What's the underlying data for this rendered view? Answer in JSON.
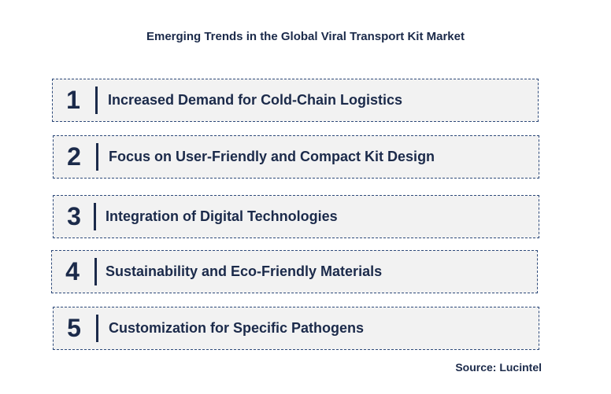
{
  "title": "Emerging Trends in the Global Viral Transport Kit Market",
  "trends": [
    {
      "number": "1",
      "label": "Increased Demand for Cold-Chain Logistics"
    },
    {
      "number": "2",
      "label": "Focus on User-Friendly and Compact Kit Design"
    },
    {
      "number": "3",
      "label": "Integration of Digital Technologies"
    },
    {
      "number": "4",
      "label": "Sustainability and Eco-Friendly Materials"
    },
    {
      "number": "5",
      "label": "Customization for Specific Pathogens"
    }
  ],
  "source": "Source: Lucintel",
  "colors": {
    "text": "#1b2a4a",
    "box_fill": "#f2f2f2",
    "box_border": "#2e4a7a"
  }
}
